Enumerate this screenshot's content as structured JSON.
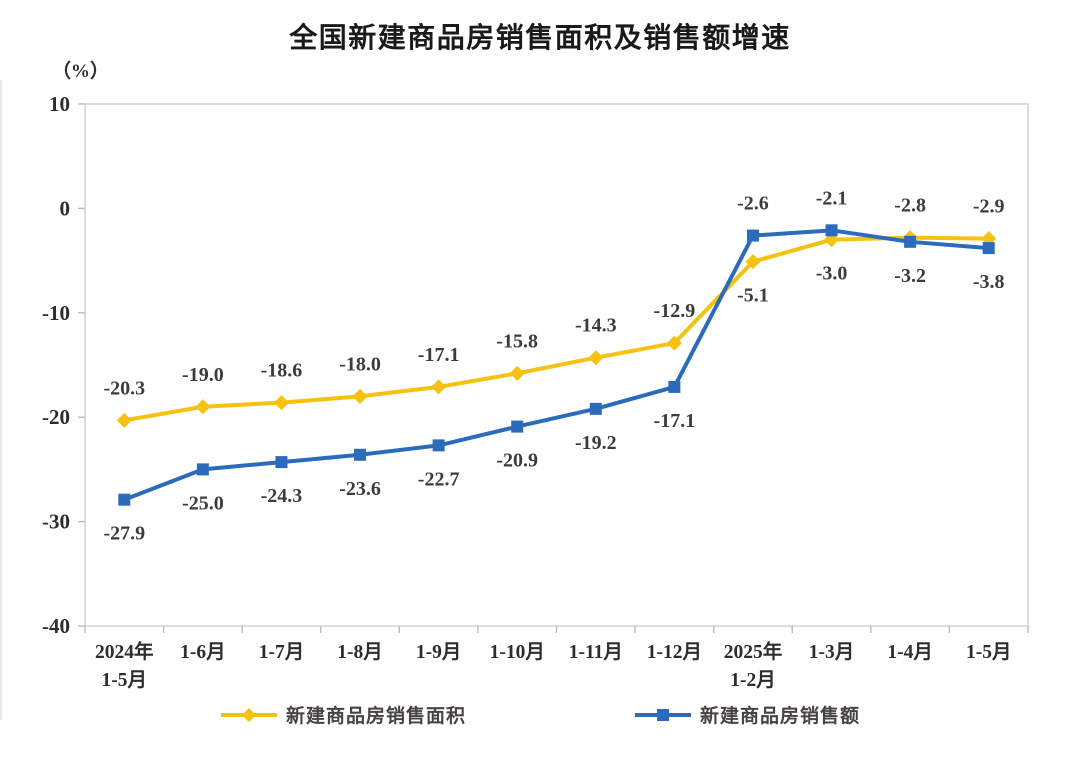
{
  "title": "全国新建商品房销售面积及销售额增速",
  "unit_label": "（%）",
  "chart_data": {
    "type": "line",
    "title": "全国新建商品房销售面积及销售额增速",
    "ylabel": "（%）",
    "xlabel": "",
    "ylim": [
      -40,
      10
    ],
    "yticks": [
      10,
      0,
      -10,
      -20,
      -30,
      -40
    ],
    "grid": false,
    "legend_position": "bottom",
    "data_labels": true,
    "categories": [
      "2024年\n1-5月",
      "1-6月",
      "1-7月",
      "1-8月",
      "1-9月",
      "1-10月",
      "1-11月",
      "1-12月",
      "2025年\n1-2月",
      "1-3月",
      "1-4月",
      "1-5月"
    ],
    "series": [
      {
        "name": "新建商品房销售面积",
        "marker": "diamond",
        "color": "#F5C211",
        "values": [
          -20.3,
          -19.0,
          -18.6,
          -18.0,
          -17.1,
          -15.8,
          -14.3,
          -12.9,
          -5.1,
          -3.0,
          -2.8,
          -2.9
        ]
      },
      {
        "name": "新建商品房销售额",
        "marker": "square",
        "color": "#2C6BBB",
        "values": [
          -27.9,
          -25.0,
          -24.3,
          -23.6,
          -22.7,
          -20.9,
          -19.2,
          -17.1,
          -2.6,
          -2.1,
          -3.2,
          -3.8
        ]
      }
    ],
    "colors": {
      "axis_border": "#d2d2d2",
      "tick_mark": "#bbbbbb",
      "tick_label": "#2d2d2d",
      "data_label": "#3c3c3c",
      "title": "#1a1a1a",
      "background": "#ffffff"
    }
  }
}
